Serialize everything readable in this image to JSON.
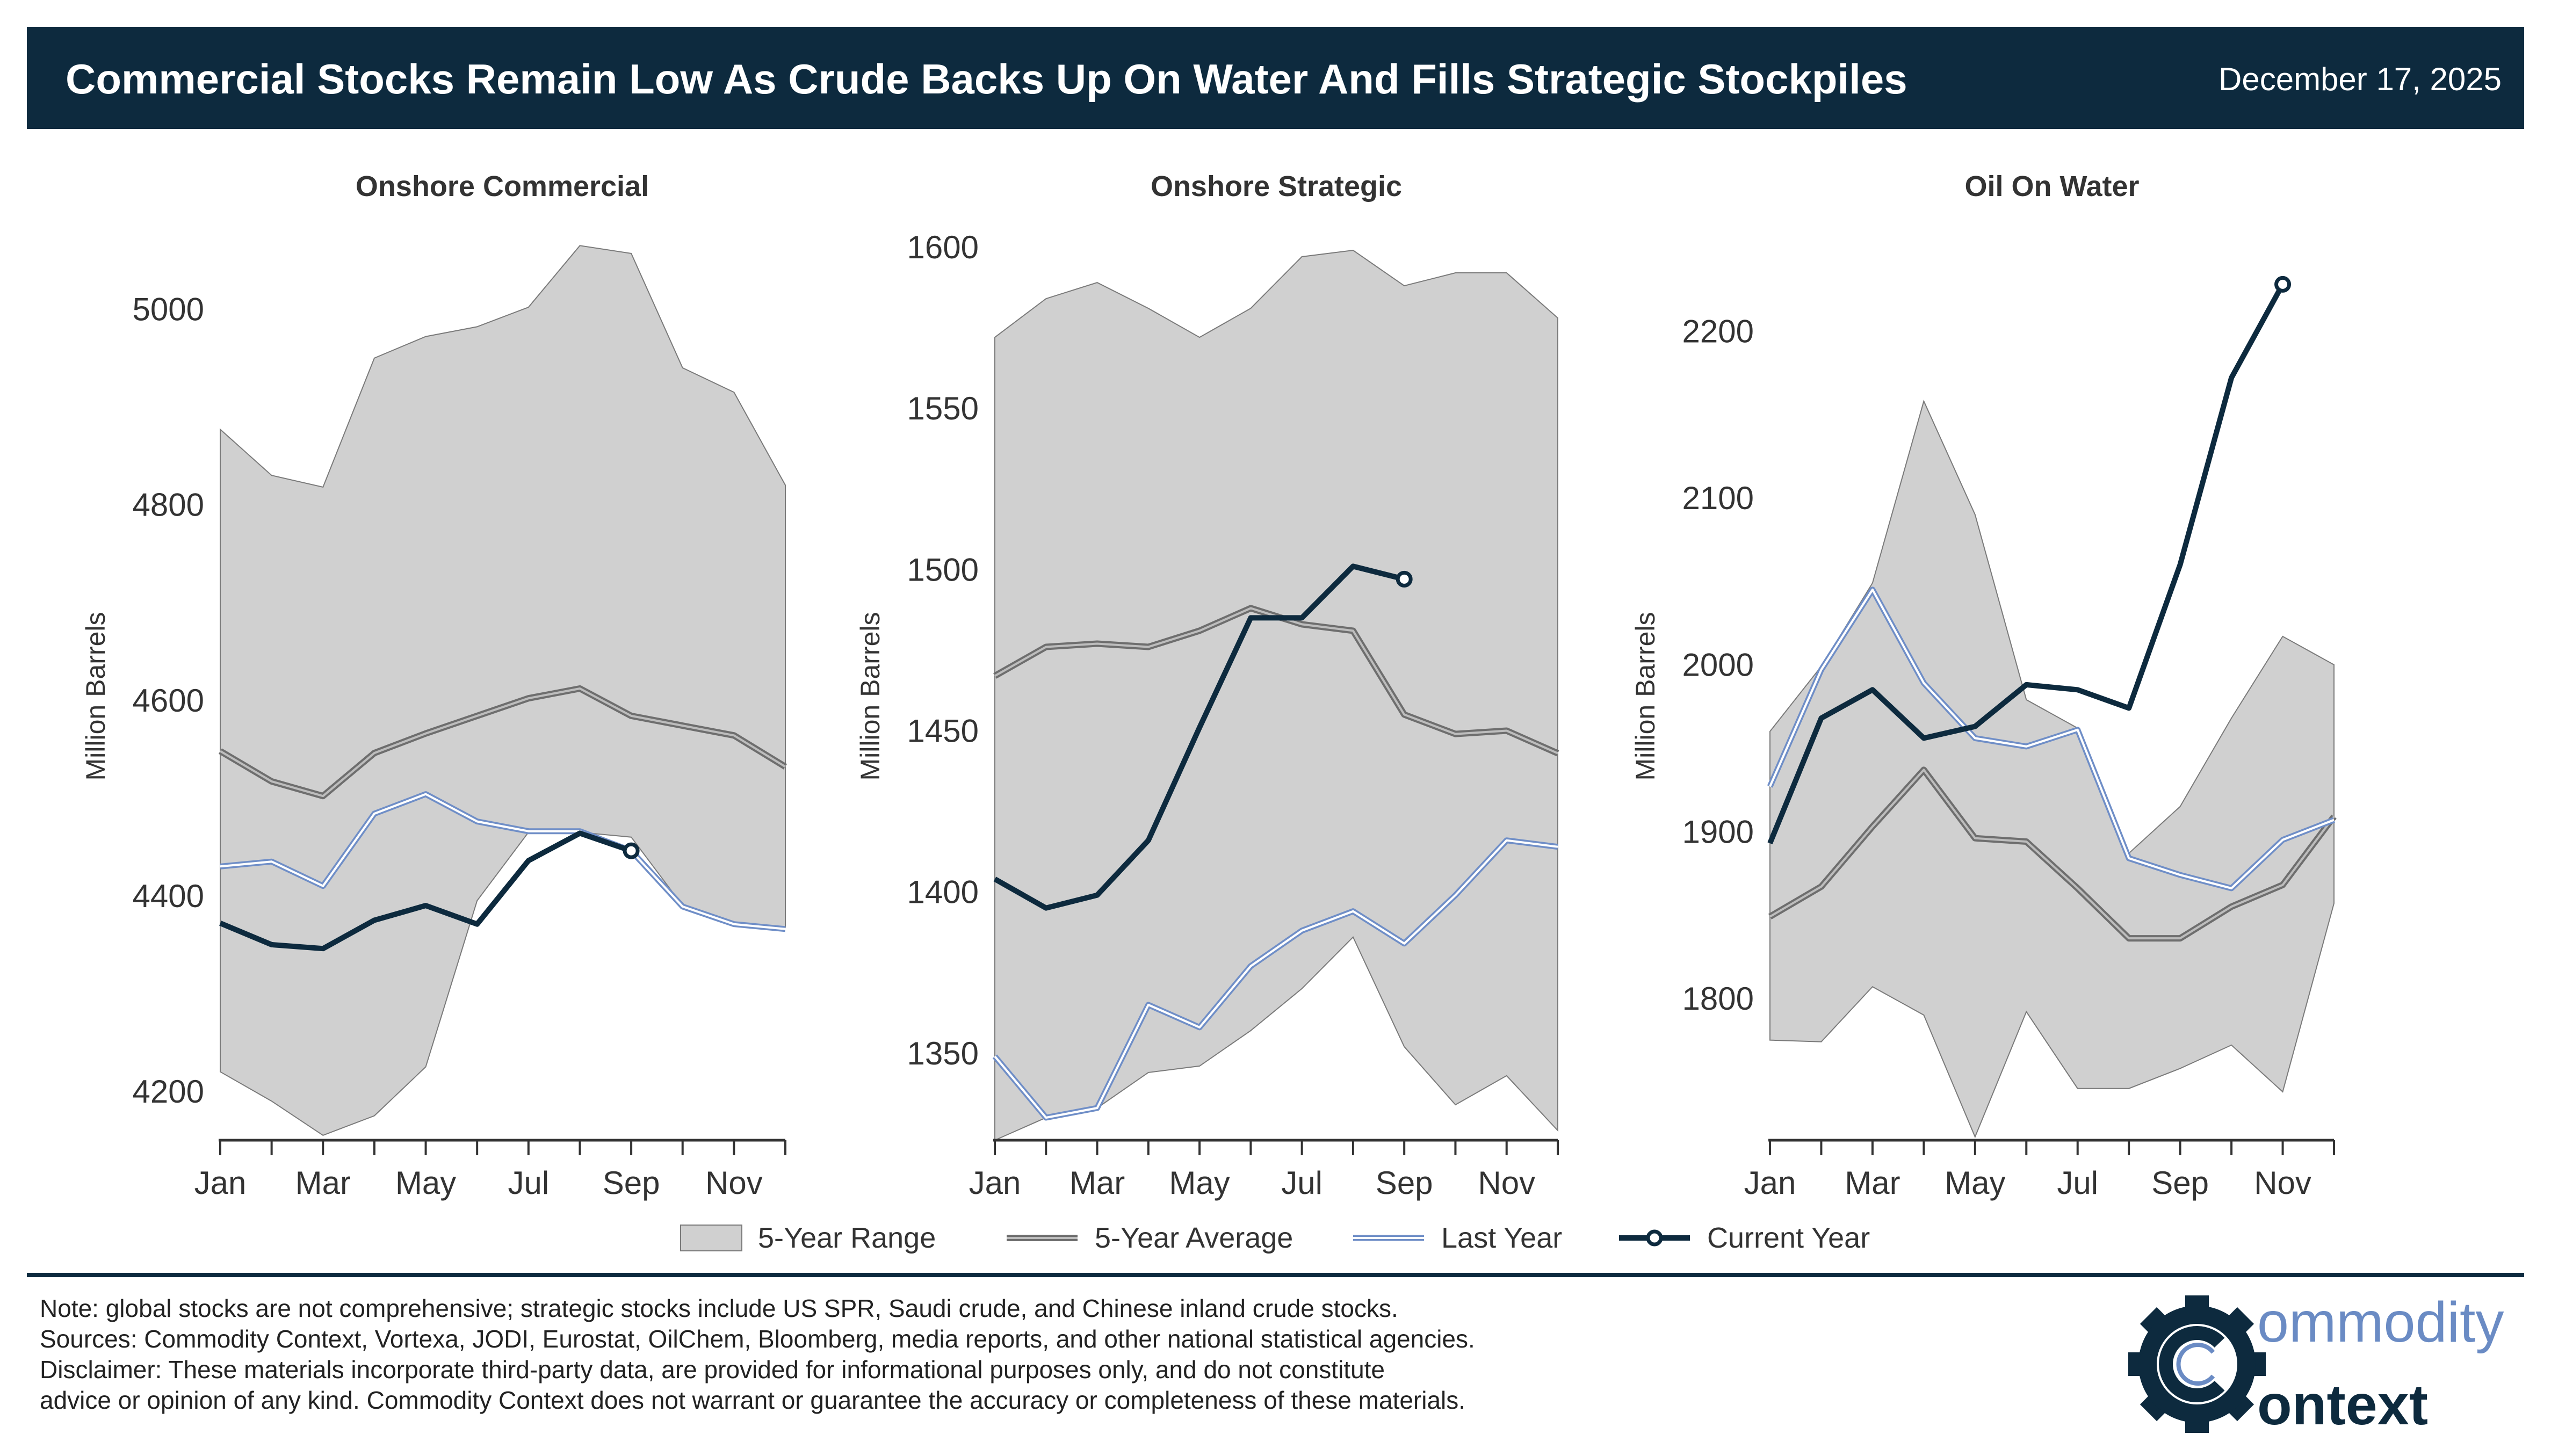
{
  "header": {
    "title": "Commercial Stocks Remain Low As Crude Backs Up On Water And Fills Strategic Stockpiles",
    "date": "December 17, 2025"
  },
  "colors": {
    "banner": "#0d2a3e",
    "range_fill": "#d0d0d0",
    "range_edge": "#7a7a7a",
    "five_year_avg": "#6e6e6e",
    "last_year": "#6f8ec7",
    "current_year": "#0d2a3e",
    "logo_blue": "#6a8bc4"
  },
  "chart_data": [
    {
      "type": "area",
      "title": "Onshore Commercial",
      "ylabel": "Million Barrels",
      "ylim": [
        4150,
        5080
      ],
      "yticks": [
        4200,
        4400,
        4600,
        4800,
        5000
      ],
      "xticks": [
        "Jan",
        "Mar",
        "May",
        "Jul",
        "Sep",
        "Nov"
      ],
      "x": [
        "Jan",
        "Feb",
        "Mar",
        "Apr",
        "May",
        "Jun",
        "Jul",
        "Aug",
        "Sep",
        "Oct",
        "Nov",
        "Dec"
      ],
      "series": [
        {
          "name": "5-Year Range",
          "low": [
            4220,
            4190,
            4155,
            4175,
            4225,
            4395,
            4465,
            4465,
            4460,
            4390,
            4372,
            4368
          ],
          "high": [
            4877,
            4830,
            4818,
            4950,
            4972,
            4982,
            5002,
            5065,
            5057,
            4940,
            4915,
            4820
          ]
        },
        {
          "name": "5-Year Average",
          "values": [
            4548,
            4517,
            4502,
            4546,
            4566,
            4584,
            4602,
            4612,
            4584,
            4574,
            4564,
            4532
          ]
        },
        {
          "name": "Last Year",
          "values": [
            4430,
            4435,
            4410,
            4484,
            4504,
            4476,
            4466,
            4466,
            4446,
            4389,
            4371,
            4366
          ]
        },
        {
          "name": "Current Year",
          "values": [
            4372,
            4350,
            4346,
            4375,
            4390,
            4371,
            4436,
            4464,
            4446,
            null,
            null,
            null
          ]
        }
      ]
    },
    {
      "type": "area",
      "title": "Onshore Strategic",
      "ylabel": "Million Barrels",
      "ylim": [
        1323,
        1605
      ],
      "yticks": [
        1350,
        1400,
        1450,
        1500,
        1550,
        1600
      ],
      "xticks": [
        "Jan",
        "Mar",
        "May",
        "Jul",
        "Sep",
        "Nov"
      ],
      "x": [
        "Jan",
        "Feb",
        "Mar",
        "Apr",
        "May",
        "Jun",
        "Jul",
        "Aug",
        "Sep",
        "Oct",
        "Nov",
        "Dec"
      ],
      "series": [
        {
          "name": "5-Year Range",
          "low": [
            1323,
            1330,
            1333,
            1344,
            1346,
            1357,
            1370,
            1386,
            1352,
            1334,
            1343,
            1326
          ],
          "high": [
            1572,
            1584,
            1589,
            1581,
            1572,
            1581,
            1597,
            1599,
            1588,
            1592,
            1592,
            1578
          ]
        },
        {
          "name": "5-Year Average",
          "values": [
            1467,
            1476,
            1477,
            1476,
            1481,
            1488,
            1483,
            1481,
            1455,
            1449,
            1450,
            1443
          ]
        },
        {
          "name": "Last Year",
          "values": [
            1349,
            1330,
            1333,
            1365,
            1358,
            1377,
            1388,
            1394,
            1384,
            1399,
            1416,
            1414
          ]
        },
        {
          "name": "Current Year",
          "values": [
            1404,
            1395,
            1399,
            1416,
            1451,
            1485,
            1485,
            1501,
            1497,
            null,
            null,
            null
          ]
        }
      ]
    },
    {
      "type": "area",
      "title": "Oil On Water",
      "ylabel": "Million Barrels",
      "ylim": [
        1715,
        2260
      ],
      "yticks": [
        1800,
        1900,
        2000,
        2100,
        2200
      ],
      "xticks": [
        "Jan",
        "Mar",
        "May",
        "Jul",
        "Sep",
        "Nov"
      ],
      "x": [
        "Jan",
        "Feb",
        "Mar",
        "Apr",
        "May",
        "Jun",
        "Jul",
        "Aug",
        "Sep",
        "Oct",
        "Nov",
        "Dec"
      ],
      "series": [
        {
          "name": "5-Year Range",
          "low": [
            1775,
            1774,
            1807,
            1790,
            1717,
            1792,
            1746,
            1746,
            1758,
            1772,
            1744,
            1857
          ],
          "high": [
            1960,
            1999,
            2049,
            2158,
            2090,
            1979,
            1962,
            1887,
            1915,
            1968,
            2017,
            2000
          ]
        },
        {
          "name": "5-Year Average",
          "values": [
            1849,
            1867,
            1903,
            1937,
            1896,
            1894,
            1866,
            1836,
            1836,
            1855,
            1868,
            1909
          ]
        },
        {
          "name": "Last Year",
          "values": [
            1927,
            1997,
            2045,
            1989,
            1956,
            1951,
            1961,
            1884,
            1874,
            1866,
            1895,
            1907
          ]
        },
        {
          "name": "Current Year",
          "values": [
            1893,
            1968,
            1985,
            1956,
            1963,
            1988,
            1985,
            1974,
            2060,
            2172,
            2228,
            null
          ]
        }
      ]
    }
  ],
  "legend": {
    "range": "5-Year Range",
    "average": "5-Year Average",
    "last_year": "Last Year",
    "current_year": "Current Year"
  },
  "notes": {
    "line1": "Note: global stocks are not comprehensive; strategic stocks include US SPR, Saudi crude, and Chinese inland crude stocks.",
    "line2": "Sources: Commodity Context, Vortexa, JODI, Eurostat, OilChem, Bloomberg, media reports, and other national statistical agencies.",
    "line3": "Disclaimer: These materials incorporate third-party data, are provided for informational purposes only, and do not constitute",
    "line4": "advice or opinion of any kind. Commodity Context does not warrant or guarantee the accuracy or completeness of these materials."
  },
  "logo": {
    "text_top": "ommodity",
    "text_bottom": "ontext"
  }
}
